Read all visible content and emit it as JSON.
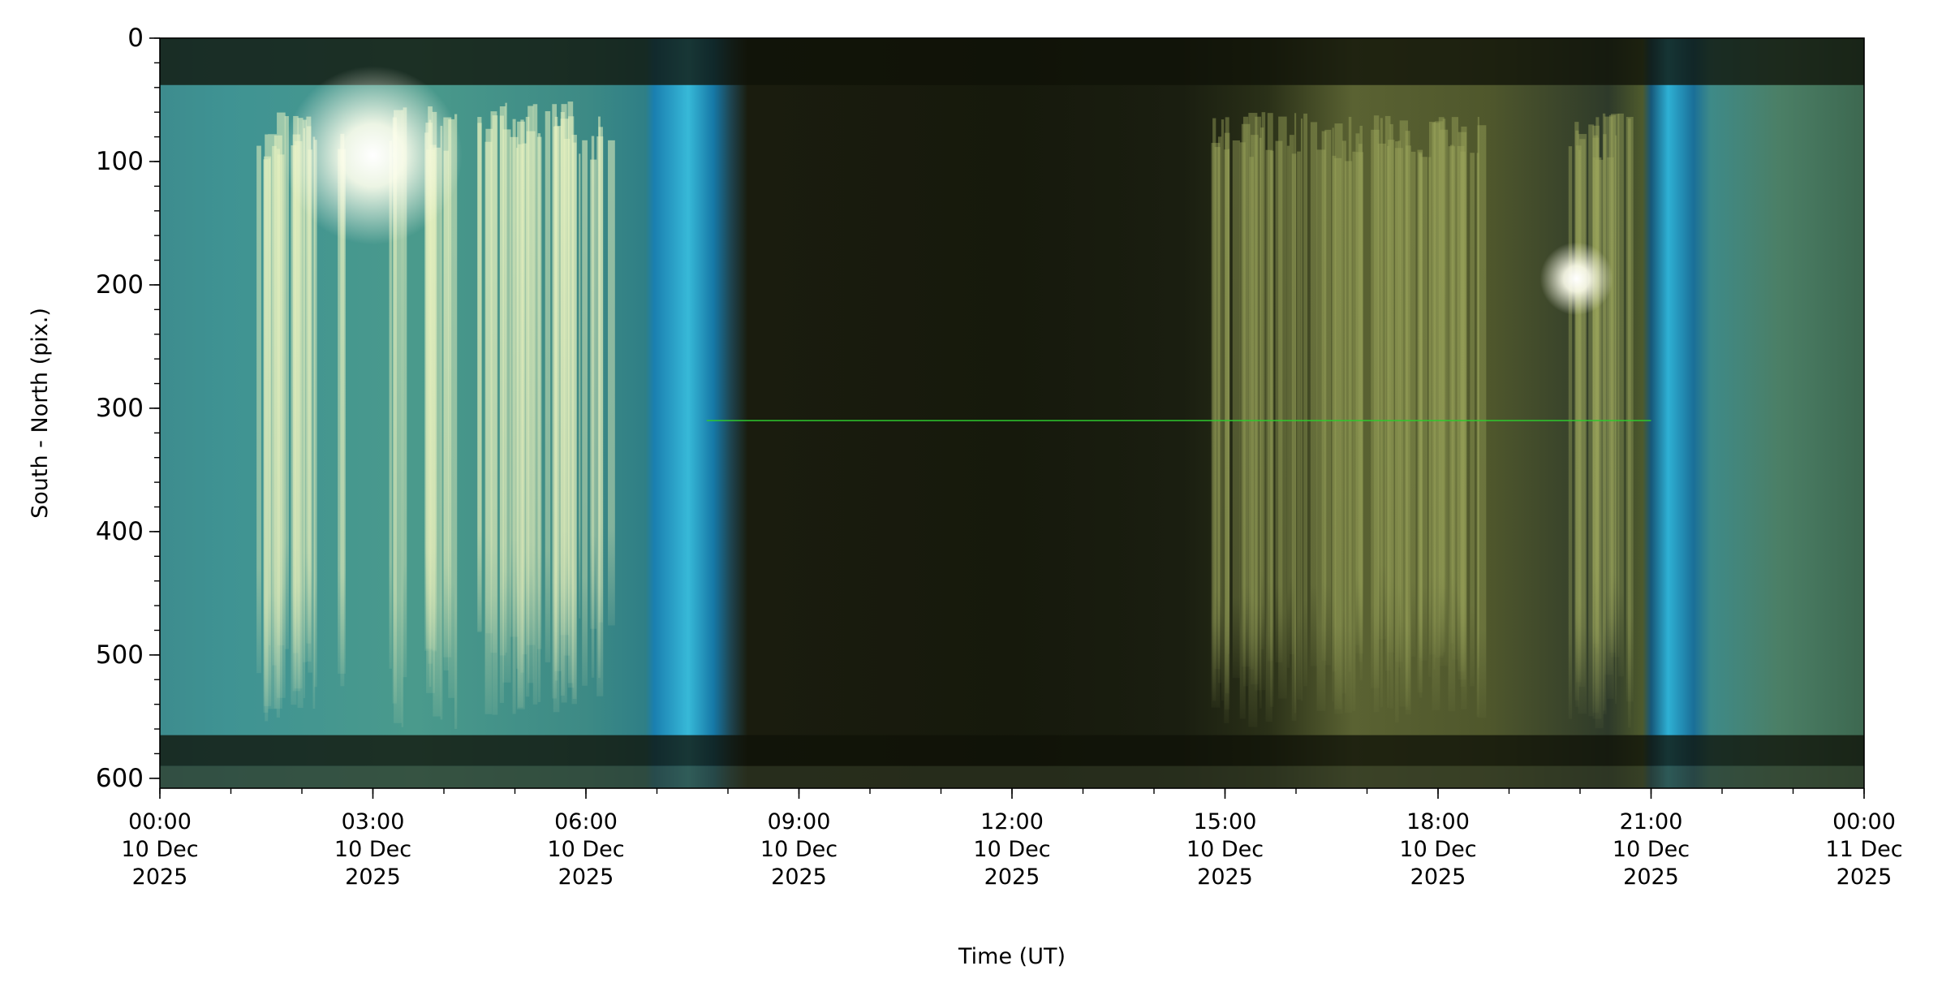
{
  "chart_data": {
    "type": "heatmap",
    "title": "",
    "xlabel": "Time (UT)",
    "ylabel": "South - North (pix.)",
    "xlim": [
      "2025-12-10T00:00",
      "2025-12-11T00:00"
    ],
    "ylim": [
      608,
      0
    ],
    "y_inverted": true,
    "grid": false,
    "x_ticks": [
      {
        "hour": 0,
        "lines": [
          "00:00",
          "10 Dec",
          "2025"
        ]
      },
      {
        "hour": 3,
        "lines": [
          "03:00",
          "10 Dec",
          "2025"
        ]
      },
      {
        "hour": 6,
        "lines": [
          "06:00",
          "10 Dec",
          "2025"
        ]
      },
      {
        "hour": 9,
        "lines": [
          "09:00",
          "10 Dec",
          "2025"
        ]
      },
      {
        "hour": 12,
        "lines": [
          "12:00",
          "10 Dec",
          "2025"
        ]
      },
      {
        "hour": 15,
        "lines": [
          "15:00",
          "10 Dec",
          "2025"
        ]
      },
      {
        "hour": 18,
        "lines": [
          "18:00",
          "10 Dec",
          "2025"
        ]
      },
      {
        "hour": 21,
        "lines": [
          "21:00",
          "10 Dec",
          "2025"
        ]
      },
      {
        "hour": 24,
        "lines": [
          "00:00",
          "11 Dec",
          "2025"
        ]
      }
    ],
    "y_ticks": [
      0,
      100,
      200,
      300,
      400,
      500,
      600
    ],
    "x_minor_step_hours": 1,
    "y_minor_step": 20,
    "segments": [
      {
        "start_hour": 0.0,
        "end_hour": 7.0,
        "description": "twilight/dawn, cyan-green sky with bright aurora streaks",
        "color": "#3f8f8c"
      },
      {
        "start_hour": 7.0,
        "end_hour": 8.0,
        "description": "blue-cyan bands",
        "color": "#1d8fb8"
      },
      {
        "start_hour": 8.0,
        "end_hour": 14.5,
        "description": "dark night",
        "color": "#161a0c"
      },
      {
        "start_hour": 14.5,
        "end_hour": 20.8,
        "description": "olive-yellow aurora activity",
        "color": "#5a6232"
      },
      {
        "start_hour": 20.8,
        "end_hour": 21.7,
        "description": "blue-cyan bands",
        "color": "#1d8fb8"
      },
      {
        "start_hour": 21.7,
        "end_hour": 24.0,
        "description": "teal-green sky",
        "color": "#3e6b55"
      }
    ],
    "features": [
      {
        "type": "bright_glow",
        "hour": 3.0,
        "pix": 95,
        "color": "#ffffee"
      },
      {
        "type": "bright_glow",
        "hour": 19.95,
        "pix": 195,
        "color": "#ffffee"
      },
      {
        "type": "horizontal_line",
        "start_hour": 7.7,
        "end_hour": 21.0,
        "pix": 310,
        "color": "#2ec82e"
      },
      {
        "type": "dark_band",
        "pix_start": 0,
        "pix_end": 38
      },
      {
        "type": "dark_band",
        "pix_start": 565,
        "pix_end": 590
      }
    ]
  }
}
